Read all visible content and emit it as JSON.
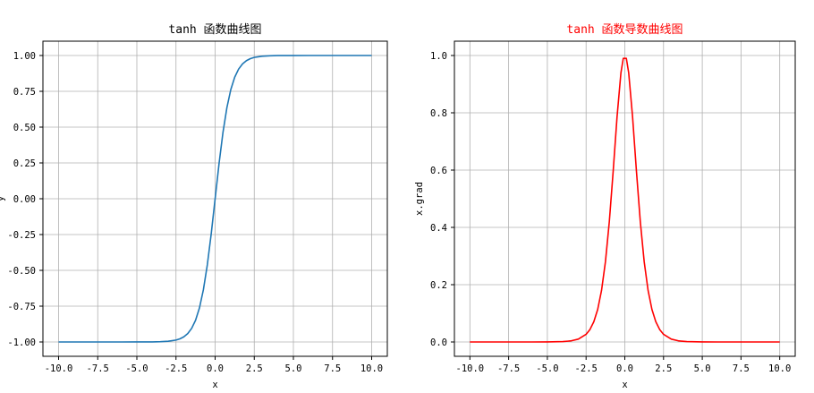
{
  "chart_data": [
    {
      "type": "line",
      "title": "tanh 函数曲线图",
      "title_color": "#000000",
      "xlabel": "x",
      "ylabel": "y",
      "xlim": [
        -11.0,
        11.0
      ],
      "ylim": [
        -1.1,
        1.1
      ],
      "grid": true,
      "xticks": [
        -10.0,
        -7.5,
        -5.0,
        -2.5,
        0.0,
        2.5,
        5.0,
        7.5,
        10.0
      ],
      "xtick_labels": [
        "-10.0",
        "-7.5",
        "-5.0",
        "-2.5",
        "0.0",
        "2.5",
        "5.0",
        "7.5",
        "10.0"
      ],
      "yticks": [
        -1.0,
        -0.75,
        -0.5,
        -0.25,
        0.0,
        0.25,
        0.5,
        0.75,
        1.0
      ],
      "ytick_labels": [
        "-1.00",
        "-0.75",
        "-0.50",
        "-0.25",
        "0.00",
        "0.25",
        "0.50",
        "0.75",
        "1.00"
      ],
      "series": [
        {
          "color": "#1f77b4",
          "x": [
            -10,
            -9,
            -8,
            -7,
            -6,
            -5,
            -4,
            -3.5,
            -3,
            -2.5,
            -2.25,
            -2,
            -1.75,
            -1.5,
            -1.25,
            -1,
            -0.75,
            -0.5,
            -0.25,
            0,
            0.25,
            0.5,
            0.75,
            1,
            1.25,
            1.5,
            1.75,
            2,
            2.25,
            2.5,
            3,
            3.5,
            4,
            5,
            6,
            7,
            8,
            9,
            10
          ],
          "y": [
            -1.0,
            -1.0,
            -1.0,
            -1.0,
            -1.0,
            -0.9999,
            -0.9993,
            -0.9982,
            -0.9951,
            -0.9866,
            -0.978,
            -0.964,
            -0.9414,
            -0.9051,
            -0.8483,
            -0.7616,
            -0.6351,
            -0.4621,
            -0.2449,
            0.0,
            0.2449,
            0.4621,
            0.6351,
            0.7616,
            0.8483,
            0.9051,
            0.9414,
            0.964,
            0.978,
            0.9866,
            0.9951,
            0.9982,
            0.9993,
            0.9999,
            1.0,
            1.0,
            1.0,
            1.0,
            1.0
          ]
        }
      ]
    },
    {
      "type": "line",
      "title": "tanh 函数导数曲线图",
      "title_color": "#ff0000",
      "xlabel": "x",
      "ylabel": "x.grad",
      "xlim": [
        -11.0,
        11.0
      ],
      "ylim": [
        -0.05,
        1.05
      ],
      "grid": true,
      "xticks": [
        -10.0,
        -7.5,
        -5.0,
        -2.5,
        0.0,
        2.5,
        5.0,
        7.5,
        10.0
      ],
      "xtick_labels": [
        "-10.0",
        "-7.5",
        "-5.0",
        "-2.5",
        "0.0",
        "2.5",
        "5.0",
        "7.5",
        "10.0"
      ],
      "yticks": [
        0.0,
        0.2,
        0.4,
        0.6,
        0.8,
        1.0
      ],
      "ytick_labels": [
        "0.0",
        "0.2",
        "0.4",
        "0.6",
        "0.8",
        "1.0"
      ],
      "series": [
        {
          "color": "#ff0000",
          "x": [
            -10,
            -8,
            -6,
            -5,
            -4,
            -3.5,
            -3,
            -2.5,
            -2.25,
            -2,
            -1.75,
            -1.5,
            -1.25,
            -1,
            -0.75,
            -0.5,
            -0.25,
            -0.1,
            0.1,
            0.25,
            0.5,
            0.75,
            1,
            1.25,
            1.5,
            1.75,
            2,
            2.25,
            2.5,
            3,
            3.5,
            4,
            5,
            6,
            8,
            10
          ],
          "y": [
            0.0,
            0.0,
            0.0,
            0.0002,
            0.0013,
            0.0036,
            0.0099,
            0.0266,
            0.0435,
            0.0707,
            0.1137,
            0.1807,
            0.2805,
            0.42,
            0.5966,
            0.7864,
            0.94,
            0.99,
            0.99,
            0.94,
            0.7864,
            0.5966,
            0.42,
            0.2805,
            0.1807,
            0.1137,
            0.0707,
            0.0435,
            0.0266,
            0.0099,
            0.0036,
            0.0013,
            0.0002,
            0.0,
            0.0,
            0.0
          ]
        }
      ]
    }
  ]
}
